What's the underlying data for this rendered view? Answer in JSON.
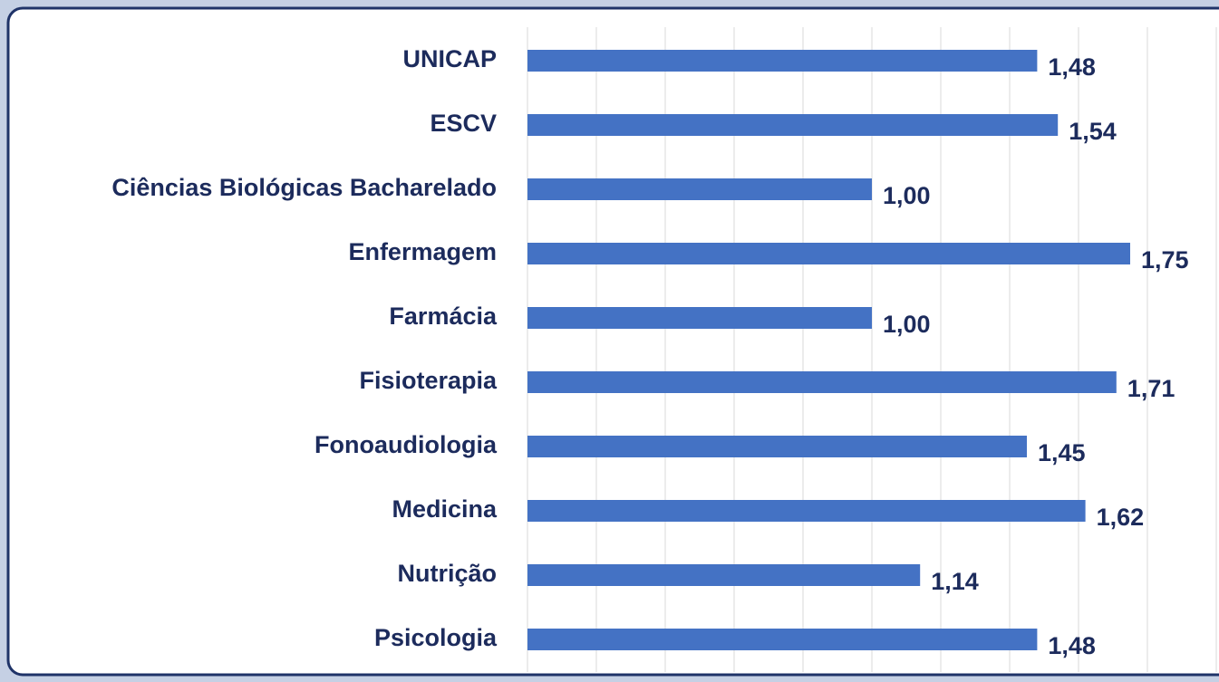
{
  "chart_data": {
    "type": "bar",
    "orientation": "horizontal",
    "categories": [
      "UNICAP",
      "ESCV",
      "Ciências Biológicas Bacharelado",
      "Enfermagem",
      "Farmácia",
      "Fisioterapia",
      "Fonoaudiologia",
      "Medicina",
      "Nutrição",
      "Psicologia"
    ],
    "values": [
      1.48,
      1.54,
      1.0,
      1.75,
      1.0,
      1.71,
      1.45,
      1.62,
      1.14,
      1.48
    ],
    "value_labels": [
      "1,48",
      "1,54",
      "1,00",
      "1,75",
      "1,00",
      "1,71",
      "1,45",
      "1,62",
      "1,14",
      "1,48"
    ],
    "color": "#4472c4",
    "xlim": [
      0,
      2
    ],
    "xticks": [
      0,
      0.2,
      0.4,
      0.6,
      0.8,
      1,
      1.2,
      1.4,
      1.6,
      1.8,
      2
    ],
    "grid": true
  }
}
